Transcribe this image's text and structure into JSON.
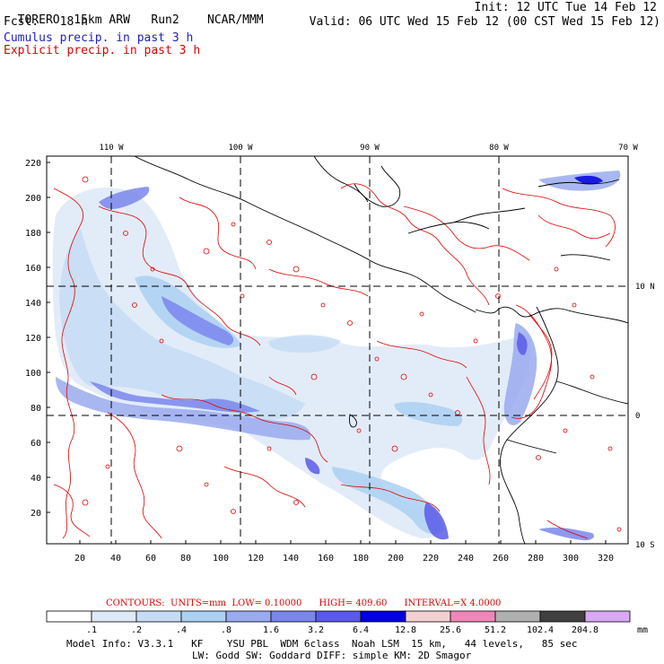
{
  "header": {
    "model": "TORERO",
    "grid": "15km ARW",
    "run": "Run2",
    "org": "NCAR/MMM",
    "fcst_label": "Fcst.",
    "fcst_value": "18 h",
    "init": "Init: 12 UTC Tue 14 Feb 12",
    "valid": "Valid: 06 UTC Wed 15 Feb 12 (00 CST Wed 15 Feb 12)",
    "field1": "Cumulus precip. in past 3 h",
    "field2": "Explicit precip. in past 3 h"
  },
  "map": {
    "lon_labels": [
      "110 W",
      "100 W",
      "90 W",
      "80 W",
      "70 W"
    ],
    "lat_labels": [
      "10 N",
      "0",
      "10 S"
    ],
    "y_ticks": [
      "220",
      "200",
      "180",
      "160",
      "140",
      "120",
      "100",
      "80",
      "60",
      "40",
      "20"
    ],
    "x_ticks": [
      "20",
      "40",
      "60",
      "80",
      "100",
      "120",
      "140",
      "160",
      "180",
      "200",
      "220",
      "240",
      "260",
      "280",
      "300",
      "320"
    ]
  },
  "contours": {
    "label": "CONTOURS:",
    "units": "UNITS=mm",
    "low": "LOW= 0.10000",
    "high": "HIGH= 409.60",
    "interval": "INTERVAL=X 4.0000"
  },
  "colorbar": {
    "unit": "mm",
    "labels": [
      ".1",
      ".2",
      ".4",
      ".8",
      "1.6",
      "3.2",
      "6.4",
      "12.8",
      "25.6",
      "51.2",
      "102.4",
      "204.8"
    ],
    "colors": [
      "#ffffff",
      "#dde9f7",
      "#c6dcf4",
      "#acd0f2",
      "#9aaaee",
      "#7a86ec",
      "#5a5ae8",
      "#0000e0",
      "#f2d0d0",
      "#f086b8",
      "#b0b0b0",
      "#404040",
      "#d8a8f4"
    ]
  },
  "model_info": {
    "line1": "Model Info: V3.3.1   KF    YSU PBL  WDM 6class  Noah LSM  15 km,   44 levels,   85 sec",
    "line2": "LW: Godd SW: Goddard DIFF: simple KM: 2D Smagor"
  }
}
